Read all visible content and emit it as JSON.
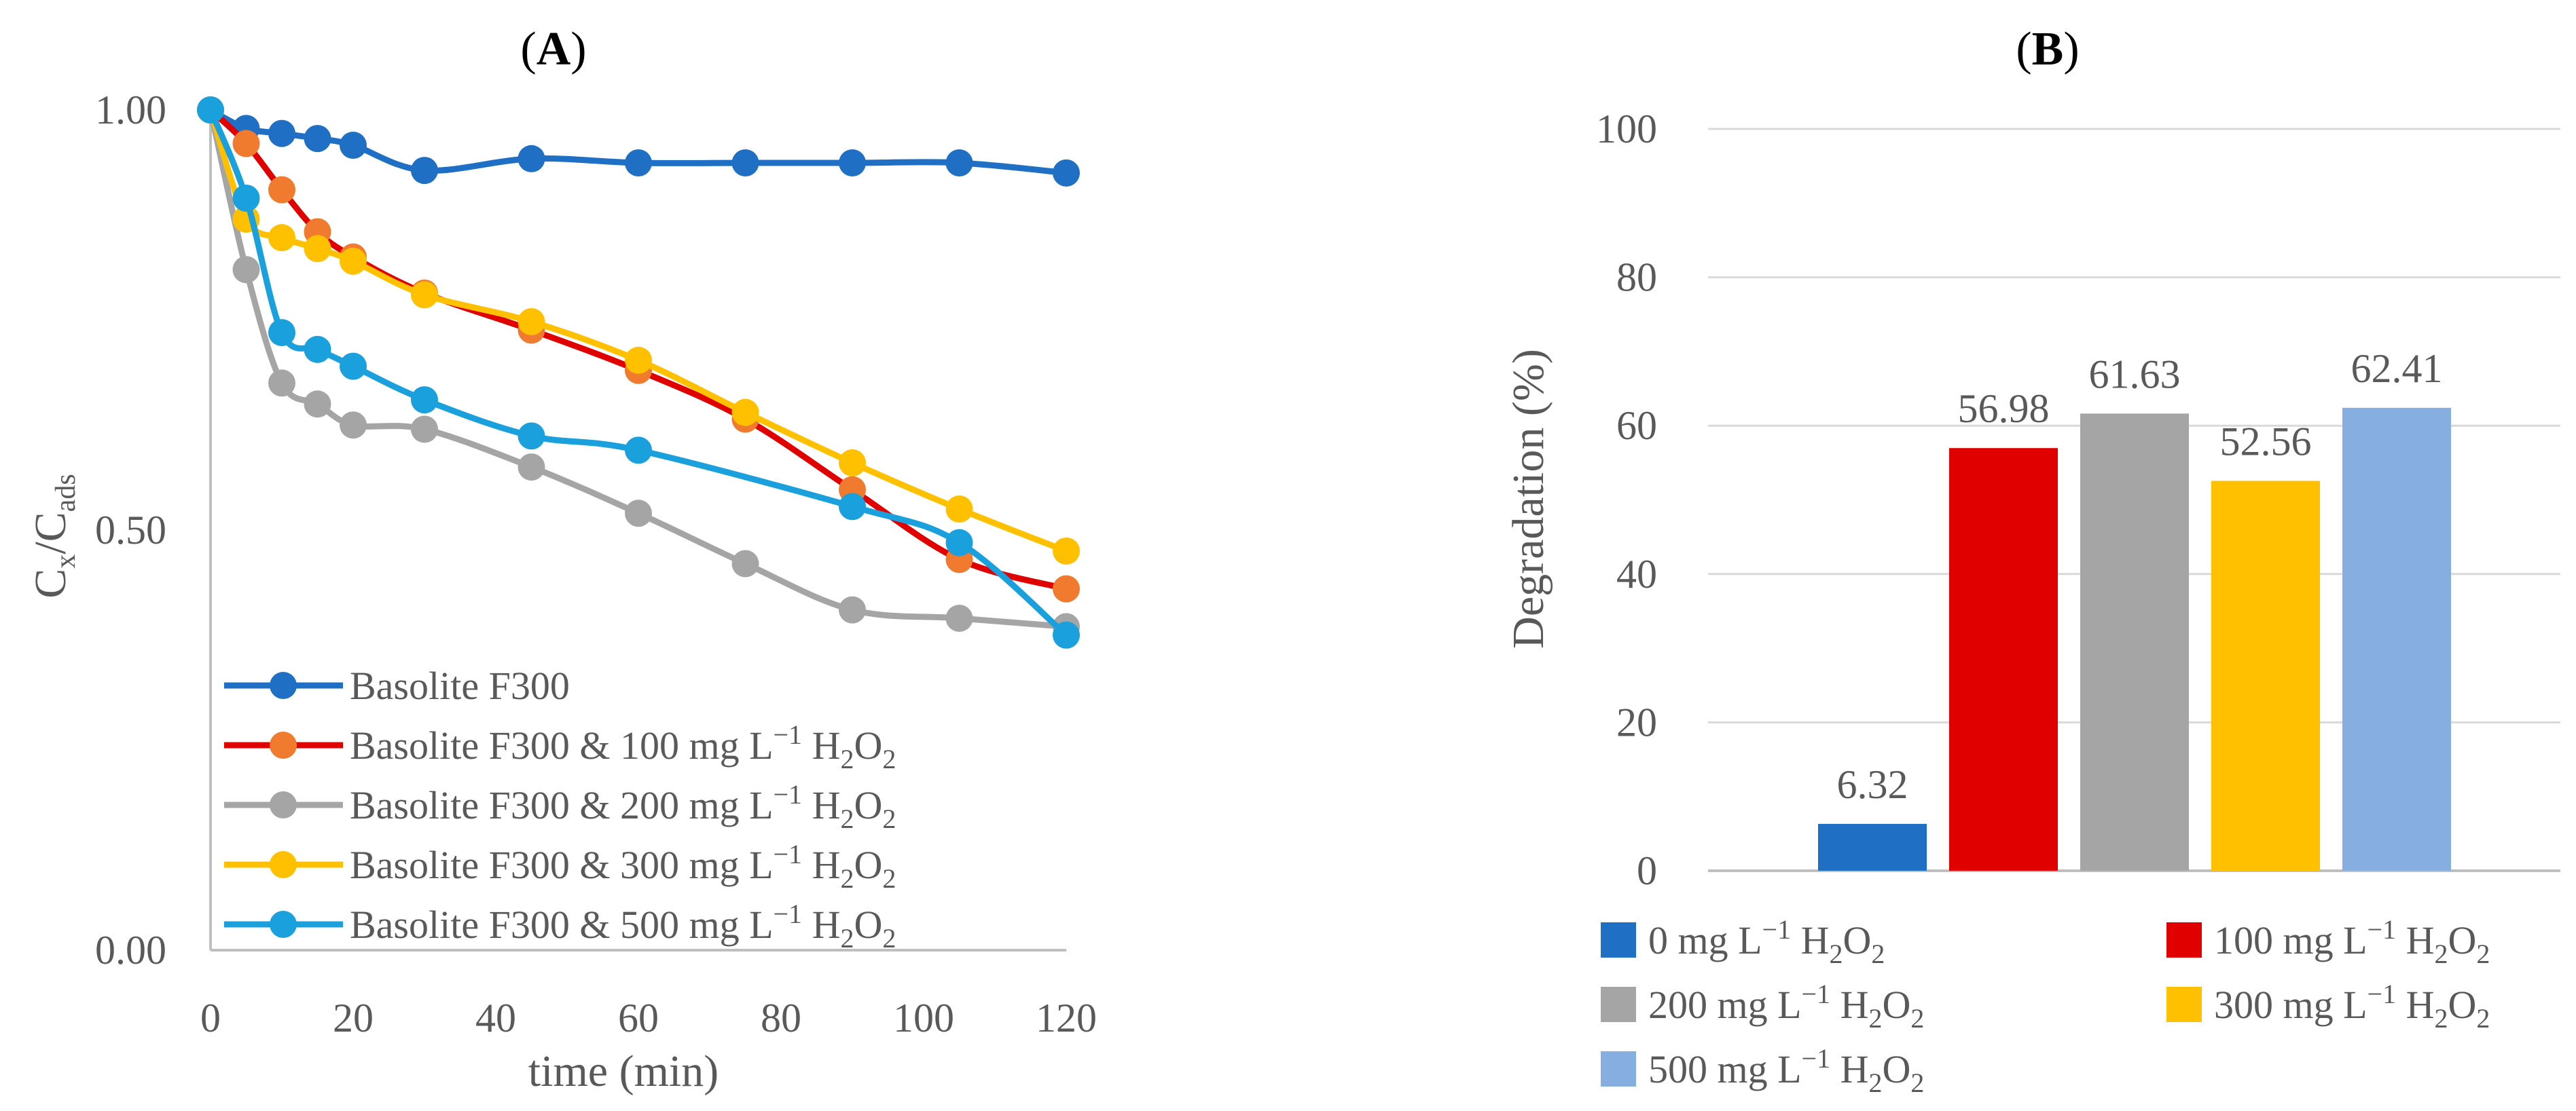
{
  "chart_data": [
    {
      "panel": "A",
      "type": "line",
      "title_open": "(",
      "title_letter": "A",
      "title_close": ")",
      "xlabel": "time (min)",
      "ylabel_main": "C",
      "ylabel_sub1": "x",
      "ylabel_sep": "/C",
      "ylabel_sub2": "ads",
      "xlim": [
        0,
        120
      ],
      "ylim": [
        0,
        1
      ],
      "xticks": [
        "0",
        "20",
        "40",
        "60",
        "80",
        "100",
        "120"
      ],
      "yticks": [
        "0.00",
        "0.50",
        "1.00"
      ],
      "grid": false,
      "legend_position": "bottom-left",
      "series": [
        {
          "name_prefix": "Basolite F300",
          "name_suffix": "",
          "color": "#1f6fc5",
          "line_color": "#1f6fc5",
          "x": [
            0,
            5,
            10,
            15,
            20,
            30,
            45,
            60,
            75,
            90,
            105,
            120
          ],
          "y": [
            1.0,
            0.978,
            0.972,
            0.966,
            0.958,
            0.928,
            0.942,
            0.937,
            0.937,
            0.937,
            0.937,
            0.925
          ]
        },
        {
          "name_prefix": "Basolite F300 & 100 mg L",
          "name_suffix": "",
          "color": "#f07b2e",
          "line_color": "#e00000",
          "x": [
            0,
            5,
            10,
            15,
            20,
            30,
            45,
            60,
            75,
            90,
            105,
            120
          ],
          "y": [
            1.0,
            0.96,
            0.905,
            0.855,
            0.825,
            0.782,
            0.738,
            0.69,
            0.632,
            0.548,
            0.465,
            0.43
          ]
        },
        {
          "name_prefix": "Basolite F300 & 200 mg L",
          "name_suffix": "",
          "color": "#a5a5a5",
          "line_color": "#a5a5a5",
          "x": [
            0,
            5,
            10,
            15,
            20,
            30,
            45,
            60,
            75,
            90,
            105,
            120
          ],
          "y": [
            1.0,
            0.81,
            0.675,
            0.65,
            0.625,
            0.62,
            0.575,
            0.52,
            0.46,
            0.405,
            0.395,
            0.385
          ]
        },
        {
          "name_prefix": "Basolite F300 & 300 mg L",
          "name_suffix": "",
          "color": "#ffc000",
          "line_color": "#ffc000",
          "x": [
            0,
            5,
            10,
            15,
            20,
            30,
            45,
            60,
            75,
            90,
            105,
            120
          ],
          "y": [
            1.0,
            0.87,
            0.848,
            0.835,
            0.82,
            0.78,
            0.748,
            0.702,
            0.64,
            0.58,
            0.525,
            0.475
          ]
        },
        {
          "name_prefix": "Basolite F300 & 500 mg L",
          "name_suffix": "",
          "color": "#1aa0dc",
          "line_color": "#1aa0dc",
          "x": [
            0,
            5,
            10,
            15,
            20,
            30,
            45,
            60,
            90,
            105,
            120
          ],
          "y": [
            1.0,
            0.895,
            0.735,
            0.715,
            0.695,
            0.655,
            0.612,
            0.595,
            0.528,
            0.485,
            0.375
          ]
        }
      ]
    },
    {
      "panel": "B",
      "type": "bar",
      "title_open": "(",
      "title_letter": "B",
      "title_close": ")",
      "xlabel": "",
      "ylabel": "Degradation (%)",
      "ylim": [
        0,
        100
      ],
      "yticks": [
        "0",
        "20",
        "40",
        "60",
        "80",
        "100"
      ],
      "grid": true,
      "legend_position": "bottom",
      "bars": [
        {
          "name_prefix": "0 mg L",
          "value": 6.32,
          "label": "6.32",
          "color": "#1f6fc5"
        },
        {
          "name_prefix": "100 mg L",
          "value": 56.98,
          "label": "56.98",
          "color": "#e00000"
        },
        {
          "name_prefix": "200 mg L",
          "value": 61.63,
          "label": "61.63",
          "color": "#a5a5a5"
        },
        {
          "name_prefix": "300 mg L",
          "value": 52.56,
          "label": "52.56",
          "color": "#ffc000"
        },
        {
          "name_prefix": "500 mg L",
          "value": 62.41,
          "label": "62.41",
          "color": "#86aee0"
        }
      ]
    }
  ],
  "units": {
    "unit_exp": "−1",
    "h_letter": "H",
    "h_sub": "2",
    "o_letter": "O",
    "o_sub": "2"
  },
  "colors": {
    "axis": "#bfbfbf",
    "gridline": "#d9d9d9",
    "text": "#595959"
  }
}
